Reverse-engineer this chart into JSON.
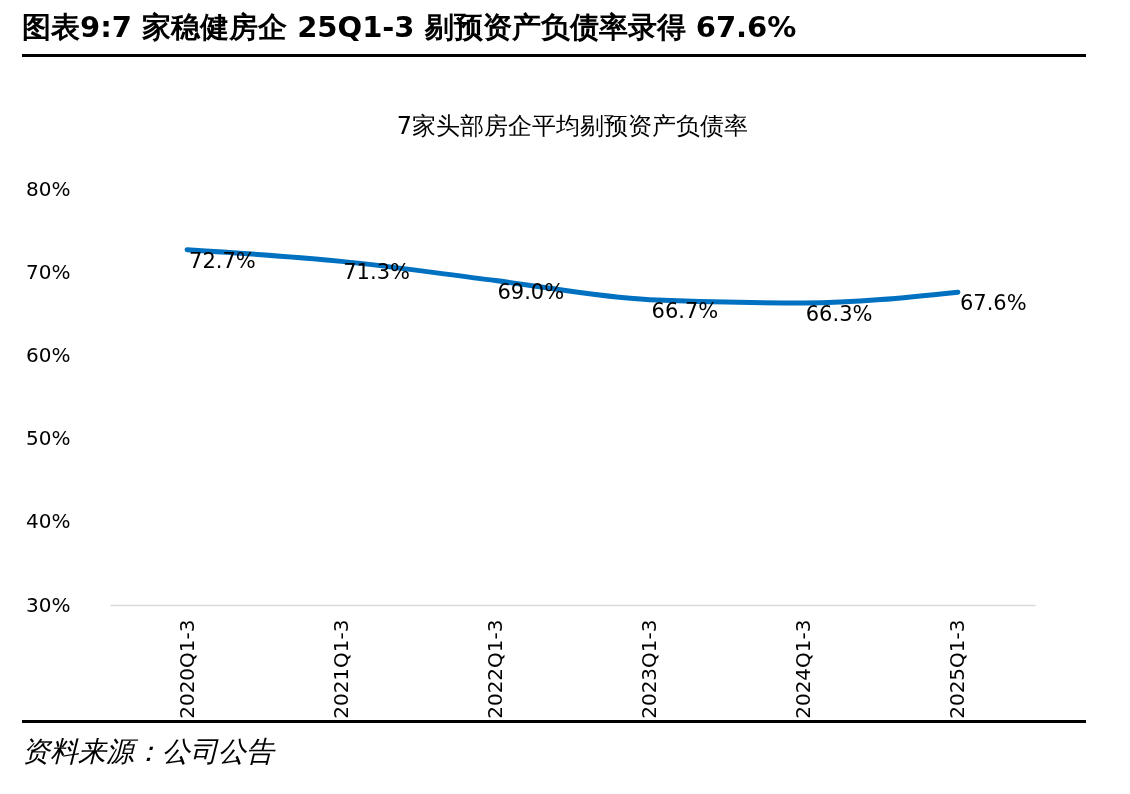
{
  "chart_data": {
    "type": "line",
    "title": "图表9:7 家稳健房企 25Q1-3 剔预资产负债率录得 67.6%",
    "subtitle": "7家头部房企平均剔预资产负债率",
    "categories": [
      "2020Q1-3",
      "2021Q1-3",
      "2022Q1-3",
      "2023Q1-3",
      "2024Q1-3",
      "2025Q1-3"
    ],
    "series": [
      {
        "color": "#0070c0",
        "values": [
          72.7,
          71.3,
          69.0,
          66.7,
          66.3,
          67.6
        ],
        "value_labels": [
          "72.7%",
          "71.3%",
          "69.0%",
          "66.7%",
          "66.3%",
          "67.6%"
        ]
      }
    ],
    "ylim": [
      30,
      80
    ],
    "yticks": [
      {
        "value": 30,
        "label": "30%"
      },
      {
        "value": 40,
        "label": "40%"
      },
      {
        "value": 50,
        "label": "50%"
      },
      {
        "value": 60,
        "label": "60%"
      },
      {
        "value": 70,
        "label": "70%"
      },
      {
        "value": 80,
        "label": "80%"
      }
    ],
    "grid": false,
    "legend": false,
    "annotations": [
      "资料来源：公司公告"
    ]
  }
}
